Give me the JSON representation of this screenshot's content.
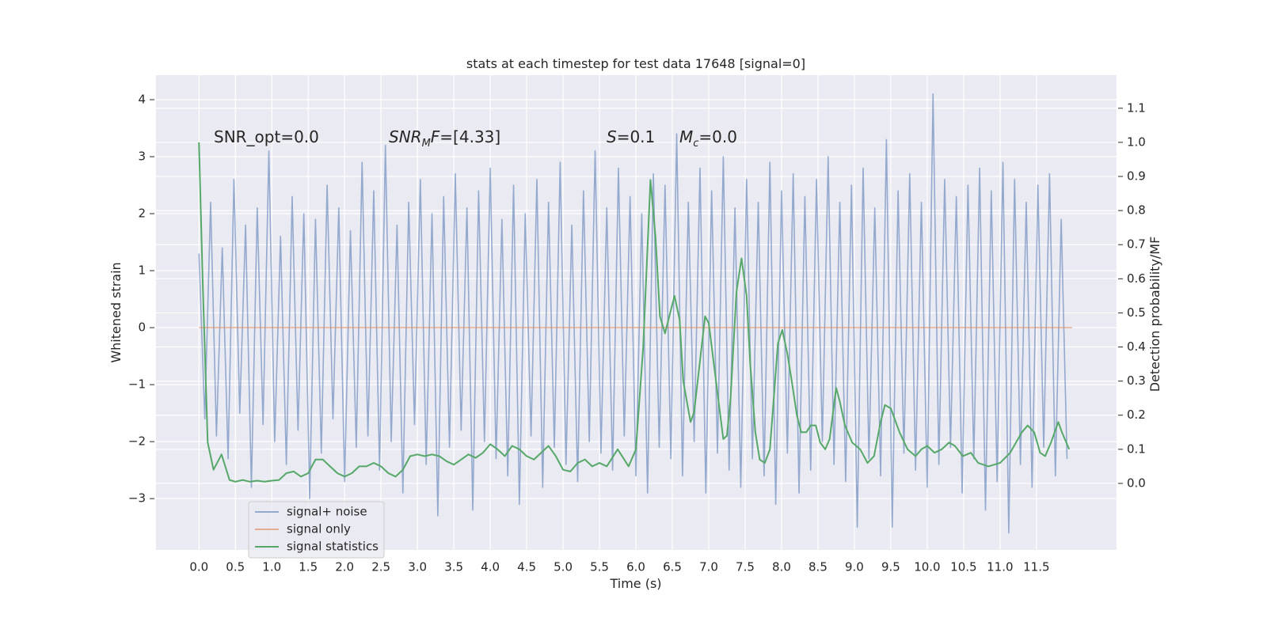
{
  "chart_data": {
    "type": "line",
    "title": "stats at each timestep for test data 17648 [signal=0]",
    "xlabel": "Time (s)",
    "ylabel": "Whitened strain",
    "y2label": "Detection probability/MF",
    "xlim": [
      -0.59,
      12.6
    ],
    "ylim": [
      -3.9,
      4.43
    ],
    "y2lim": [
      -0.195,
      1.197
    ],
    "xticks": [
      {
        "value": 0,
        "label": "0.0"
      },
      0.5,
      {
        "value": 1,
        "label": "1.0"
      },
      1.5,
      {
        "value": 2,
        "label": "2.0"
      },
      2.5,
      {
        "value": 3,
        "label": "3.0"
      },
      3.5,
      {
        "value": 4,
        "label": "4.0"
      },
      4.5,
      {
        "value": 5,
        "label": "5.0"
      },
      5.5,
      {
        "value": 6,
        "label": "6.0"
      },
      6.5,
      {
        "value": 7,
        "label": "7.0"
      },
      7.5,
      {
        "value": 8,
        "label": "8.0"
      },
      8.5,
      {
        "value": 9,
        "label": "9.0"
      },
      9.5,
      {
        "value": 10,
        "label": "10.0"
      },
      10.5,
      {
        "value": 11,
        "label": "11.0"
      },
      11.5
    ],
    "yticks": [
      {
        "value": -3,
        "label": "−3"
      },
      {
        "value": -2,
        "label": "−2"
      },
      {
        "value": -1,
        "label": "−1"
      },
      0,
      1,
      2,
      3,
      4
    ],
    "y2ticks": [
      {
        "value": 0,
        "label": "0.0"
      },
      0.1,
      0.2,
      0.3,
      0.4,
      0.5,
      0.6,
      0.7,
      0.8,
      0.9,
      {
        "value": 1,
        "label": "1.0"
      },
      1.1
    ],
    "grid": true,
    "legend": "lower left",
    "annotations": [
      {
        "parts": [
          {
            "text": "SNR_opt=0.0"
          }
        ]
      },
      {
        "parts": [
          {
            "text": "SNR",
            "italic": true
          },
          {
            "text": "M",
            "italic": true,
            "sub": true
          },
          {
            "text": "F",
            "italic": true
          },
          {
            "text": "=[4.33]"
          }
        ]
      },
      {
        "parts": [
          {
            "text": "S",
            "italic": true
          },
          {
            "text": "=0.1"
          }
        ]
      },
      {
        "parts": [
          {
            "text": "M",
            "italic": true
          },
          {
            "text": "c",
            "italic": true,
            "sub": true
          },
          {
            "text": "=0.0"
          }
        ]
      }
    ],
    "series": [
      {
        "name": "signal+ noise",
        "color": "#4c72b0",
        "alpha": 0.55,
        "x": [
          0,
          0.08,
          0.16,
          0.24,
          0.32,
          0.4,
          0.48,
          0.56,
          0.64,
          0.72,
          0.8,
          0.88,
          0.96,
          1.04,
          1.12,
          1.2,
          1.28,
          1.36,
          1.44,
          1.52,
          1.6,
          1.68,
          1.76,
          1.84,
          1.92,
          2,
          2.08,
          2.16,
          2.24,
          2.32,
          2.4,
          2.48,
          2.56,
          2.64,
          2.72,
          2.8,
          2.88,
          2.96,
          3.04,
          3.12,
          3.2,
          3.28,
          3.36,
          3.44,
          3.52,
          3.6,
          3.68,
          3.76,
          3.84,
          3.92,
          4,
          4.08,
          4.16,
          4.24,
          4.32,
          4.4,
          4.48,
          4.56,
          4.64,
          4.72,
          4.8,
          4.88,
          4.96,
          5.04,
          5.12,
          5.2,
          5.28,
          5.36,
          5.44,
          5.52,
          5.6,
          5.68,
          5.76,
          5.84,
          5.92,
          6,
          6.08,
          6.16,
          6.24,
          6.32,
          6.4,
          6.48,
          6.56,
          6.64,
          6.72,
          6.8,
          6.88,
          6.96,
          7.04,
          7.12,
          7.2,
          7.28,
          7.36,
          7.44,
          7.52,
          7.6,
          7.68,
          7.76,
          7.84,
          7.92,
          8,
          8.08,
          8.16,
          8.24,
          8.32,
          8.4,
          8.48,
          8.56,
          8.64,
          8.72,
          8.8,
          8.88,
          8.96,
          9.04,
          9.12,
          9.2,
          9.28,
          9.36,
          9.44,
          9.52,
          9.6,
          9.68,
          9.76,
          9.84,
          9.92,
          10,
          10.08,
          10.16,
          10.24,
          10.32,
          10.4,
          10.48,
          10.56,
          10.64,
          10.72,
          10.8,
          10.88,
          10.96,
          11.04,
          11.12,
          11.2,
          11.28,
          11.36,
          11.44,
          11.52,
          11.6,
          11.68,
          11.76,
          11.84,
          11.92
        ],
        "values": [
          1.3,
          -1.6,
          2.2,
          -1.9,
          1.4,
          -2.3,
          2.6,
          -1.5,
          1.8,
          -2.8,
          2.1,
          -1.7,
          3.1,
          -2.0,
          1.6,
          -2.4,
          2.3,
          -1.8,
          2.0,
          -3.0,
          1.9,
          -2.2,
          2.5,
          -1.6,
          2.1,
          -2.7,
          1.7,
          -2.1,
          2.9,
          -1.9,
          2.4,
          -2.5,
          3.2,
          -2.0,
          1.8,
          -2.9,
          2.2,
          -1.7,
          2.6,
          -2.4,
          2.0,
          -3.3,
          2.3,
          -2.1,
          2.7,
          -1.8,
          2.1,
          -3.2,
          2.4,
          -2.0,
          2.8,
          -2.3,
          1.9,
          -2.6,
          2.5,
          -3.1,
          2.0,
          -1.9,
          2.6,
          -2.8,
          2.2,
          -2.1,
          2.9,
          -2.4,
          1.8,
          -2.7,
          2.4,
          -2.0,
          3.1,
          -2.2,
          2.1,
          -2.5,
          2.8,
          -1.9,
          2.3,
          -2.6,
          2.0,
          -2.9,
          2.7,
          -2.1,
          2.5,
          -2.3,
          3.4,
          -2.6,
          2.2,
          -2.0,
          2.8,
          -2.9,
          2.4,
          -2.2,
          3.0,
          -2.5,
          2.1,
          -2.8,
          2.6,
          -2.3,
          2.2,
          -2.6,
          2.9,
          -3.1,
          2.4,
          -2.2,
          2.7,
          -2.9,
          2.3,
          -2.5,
          2.6,
          -2.0,
          3.0,
          -2.4,
          2.2,
          -2.7,
          2.5,
          -3.5,
          2.8,
          -2.3,
          2.1,
          -2.6,
          3.3,
          -3.5,
          2.4,
          -2.2,
          2.7,
          -2.5,
          2.2,
          -2.8,
          4.1,
          -2.4,
          2.6,
          -2.1,
          2.3,
          -2.9,
          2.5,
          -2.3,
          2.8,
          -3.2,
          2.4,
          -2.7,
          2.9,
          -3.6,
          2.6,
          -2.4,
          2.2,
          -2.8,
          2.5,
          -2.1,
          2.7,
          -2.6,
          1.9,
          -2.3
        ]
      },
      {
        "name": "signal only",
        "color": "#dd8452",
        "alpha": 0.6,
        "x": [
          0,
          11.99
        ],
        "values": [
          0,
          0
        ]
      },
      {
        "name": "signal statistics",
        "color": "#55a868",
        "alpha": 1,
        "axis": "y2",
        "x": [
          0,
          0.05,
          0.12,
          0.2,
          0.31,
          0.42,
          0.5,
          0.6,
          0.7,
          0.8,
          0.9,
          1.0,
          1.1,
          1.2,
          1.3,
          1.4,
          1.5,
          1.6,
          1.7,
          1.8,
          1.9,
          2.0,
          2.1,
          2.2,
          2.3,
          2.4,
          2.5,
          2.6,
          2.7,
          2.8,
          2.9,
          3.0,
          3.1,
          3.2,
          3.3,
          3.4,
          3.5,
          3.6,
          3.7,
          3.8,
          3.9,
          4.0,
          4.1,
          4.2,
          4.3,
          4.4,
          4.5,
          4.6,
          4.7,
          4.8,
          4.9,
          5.0,
          5.1,
          5.2,
          5.3,
          5.4,
          5.5,
          5.6,
          5.75,
          5.9,
          6.0,
          6.1,
          6.2,
          6.27,
          6.33,
          6.4,
          6.53,
          6.6,
          6.65,
          6.75,
          6.8,
          6.95,
          7.0,
          7.1,
          7.2,
          7.25,
          7.3,
          7.38,
          7.45,
          7.52,
          7.57,
          7.64,
          7.7,
          7.77,
          7.84,
          7.95,
          8.01,
          8.08,
          8.14,
          8.21,
          8.27,
          8.34,
          8.4,
          8.47,
          8.53,
          8.6,
          8.66,
          8.75,
          8.8,
          8.87,
          8.97,
          9.08,
          9.18,
          9.27,
          9.36,
          9.42,
          9.5,
          9.62,
          9.73,
          9.84,
          9.92,
          10.0,
          10.1,
          10.2,
          10.3,
          10.38,
          10.49,
          10.6,
          10.7,
          10.84,
          11.0,
          11.14,
          11.3,
          11.38,
          11.47,
          11.55,
          11.62,
          11.7,
          11.8,
          11.85,
          11.95
        ],
        "values": [
          1.0,
          0.6,
          0.12,
          0.04,
          0.085,
          0.01,
          0.005,
          0.01,
          0.005,
          0.008,
          0.005,
          0.008,
          0.01,
          0.03,
          0.035,
          0.02,
          0.03,
          0.07,
          0.07,
          0.05,
          0.03,
          0.02,
          0.03,
          0.05,
          0.05,
          0.06,
          0.05,
          0.03,
          0.02,
          0.04,
          0.08,
          0.085,
          0.08,
          0.085,
          0.08,
          0.065,
          0.055,
          0.07,
          0.085,
          0.075,
          0.09,
          0.115,
          0.1,
          0.08,
          0.11,
          0.1,
          0.08,
          0.07,
          0.09,
          0.11,
          0.08,
          0.04,
          0.035,
          0.06,
          0.07,
          0.05,
          0.06,
          0.05,
          0.1,
          0.05,
          0.1,
          0.4,
          0.89,
          0.72,
          0.49,
          0.44,
          0.55,
          0.48,
          0.3,
          0.18,
          0.21,
          0.49,
          0.47,
          0.3,
          0.13,
          0.14,
          0.25,
          0.56,
          0.66,
          0.55,
          0.35,
          0.15,
          0.07,
          0.06,
          0.1,
          0.41,
          0.45,
          0.38,
          0.3,
          0.2,
          0.15,
          0.15,
          0.17,
          0.17,
          0.12,
          0.1,
          0.13,
          0.28,
          0.24,
          0.17,
          0.12,
          0.1,
          0.06,
          0.08,
          0.18,
          0.23,
          0.22,
          0.15,
          0.1,
          0.08,
          0.1,
          0.11,
          0.09,
          0.1,
          0.12,
          0.11,
          0.08,
          0.09,
          0.06,
          0.05,
          0.06,
          0.09,
          0.15,
          0.17,
          0.15,
          0.09,
          0.08,
          0.12,
          0.18,
          0.15,
          0.1
        ]
      }
    ]
  }
}
